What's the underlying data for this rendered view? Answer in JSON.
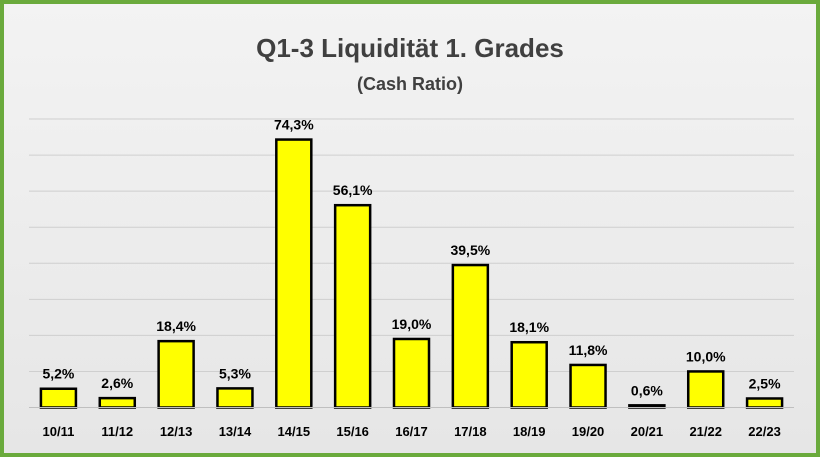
{
  "chart_data": {
    "type": "bar",
    "title": "Q1-3 Liquidität 1. Grades",
    "subtitle": "(Cash Ratio)",
    "xlabel": "",
    "ylabel": "",
    "categories": [
      "10/11",
      "11/12",
      "12/13",
      "13/14",
      "14/15",
      "15/16",
      "16/17",
      "17/18",
      "18/19",
      "19/20",
      "20/21",
      "21/22",
      "22/23"
    ],
    "values": [
      5.2,
      2.6,
      18.4,
      5.3,
      74.3,
      56.1,
      19.0,
      39.5,
      18.1,
      11.8,
      0.6,
      10.0,
      2.5
    ],
    "value_labels": [
      "5,2%",
      "2,6%",
      "18,4%",
      "5,3%",
      "74,3%",
      "56,1%",
      "19,0%",
      "39,5%",
      "18,1%",
      "11,8%",
      "0,6%",
      "10,0%",
      "2,5%"
    ],
    "ylim": [
      0,
      80
    ],
    "grid": true,
    "legend": "none",
    "bar_color": "#ffff00",
    "bar_edge_color": "#000000",
    "frame_color": "#6aaa3c"
  }
}
